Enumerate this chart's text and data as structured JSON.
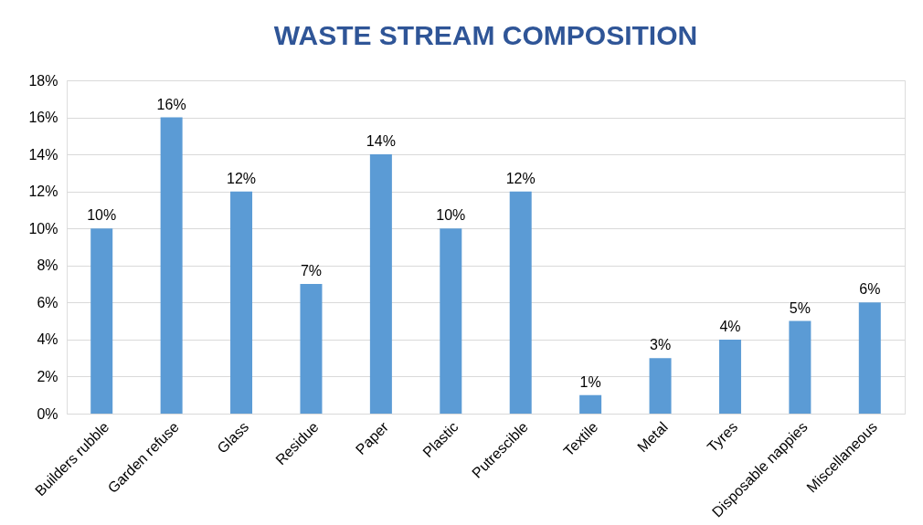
{
  "chart_data": {
    "type": "bar",
    "title": "WASTE STREAM COMPOSITION",
    "categories": [
      "Builders rubble",
      "Garden refuse",
      "Glass",
      "Residue",
      "Paper",
      "Plastic",
      "Putrescible",
      "Textile",
      "Metal",
      "Tyres",
      "Disposable nappies",
      "Miscellaneous"
    ],
    "values": [
      10,
      16,
      12,
      7,
      14,
      10,
      12,
      1,
      3,
      4,
      5,
      6
    ],
    "value_labels": [
      "10%",
      "16%",
      "12%",
      "7%",
      "14%",
      "10%",
      "12%",
      "1%",
      "3%",
      "4%",
      "5%",
      "6%"
    ],
    "color": "#5b9bd5",
    "ylim": [
      0,
      18
    ],
    "yticks": [
      {
        "value": 0,
        "label": "0%"
      },
      {
        "value": 2,
        "label": "2%"
      },
      {
        "value": 4,
        "label": "4%"
      },
      {
        "value": 6,
        "label": "6%"
      },
      {
        "value": 8,
        "label": "8%"
      },
      {
        "value": 10,
        "label": "10%"
      },
      {
        "value": 12,
        "label": "12%"
      },
      {
        "value": 14,
        "label": "14%"
      },
      {
        "value": 16,
        "label": "16%"
      },
      {
        "value": 18,
        "label": "18%"
      }
    ],
    "grid": "y"
  }
}
